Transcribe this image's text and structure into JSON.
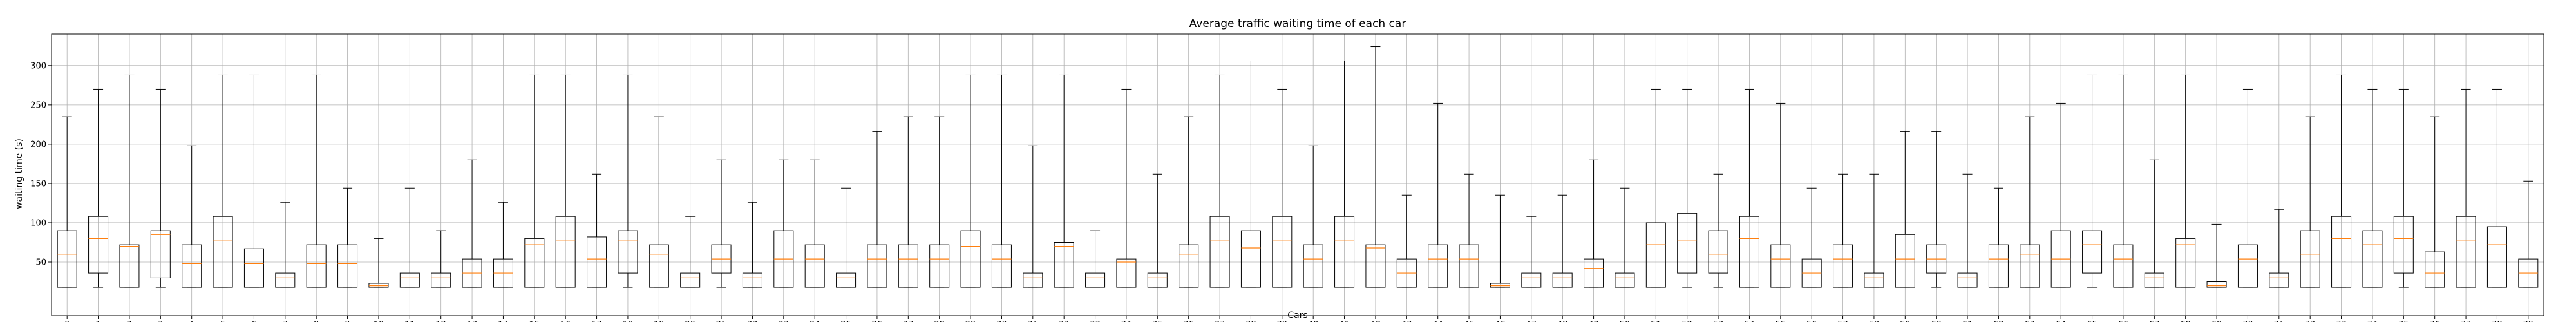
{
  "chart_data": {
    "type": "box",
    "title": "Average traffic waiting time of each car",
    "xlabel": "Cars",
    "ylabel": "waiting time (s)",
    "ylim": [
      -18,
      340
    ],
    "yticks": [
      50,
      100,
      150,
      200,
      250,
      300
    ],
    "grid": true,
    "colors": {
      "box": "#000000",
      "median": "#ff7f0e",
      "grid": "#b0b0b0"
    },
    "categories": [
      "0",
      "1",
      "2",
      "3",
      "4",
      "5",
      "6",
      "7",
      "8",
      "9",
      "10",
      "11",
      "12",
      "13",
      "14",
      "15",
      "16",
      "17",
      "18",
      "19",
      "20",
      "21",
      "22",
      "23",
      "24",
      "25",
      "26",
      "27",
      "28",
      "29",
      "30",
      "31",
      "32",
      "33",
      "34",
      "35",
      "36",
      "37",
      "38",
      "39",
      "40",
      "41",
      "42",
      "43",
      "44",
      "45",
      "46",
      "47",
      "48",
      "49",
      "50",
      "51",
      "52",
      "53",
      "54",
      "55",
      "56",
      "57",
      "58",
      "59",
      "60",
      "61",
      "62",
      "63",
      "64",
      "65",
      "66",
      "67",
      "68",
      "69",
      "70",
      "71",
      "72",
      "73",
      "74",
      "75",
      "76",
      "77",
      "78",
      "79"
    ],
    "boxes": [
      {
        "lo": 18,
        "q1": 18,
        "med": 60,
        "q3": 90,
        "hi": 235
      },
      {
        "lo": 18,
        "q1": 36,
        "med": 80,
        "q3": 108,
        "hi": 270
      },
      {
        "lo": 18,
        "q1": 18,
        "med": 70,
        "q3": 72,
        "hi": 288
      },
      {
        "lo": 18,
        "q1": 30,
        "med": 85,
        "q3": 90,
        "hi": 270
      },
      {
        "lo": 18,
        "q1": 18,
        "med": 48,
        "q3": 72,
        "hi": 198
      },
      {
        "lo": 18,
        "q1": 18,
        "med": 78,
        "q3": 108,
        "hi": 288
      },
      {
        "lo": 18,
        "q1": 18,
        "med": 48,
        "q3": 67,
        "hi": 288
      },
      {
        "lo": 18,
        "q1": 18,
        "med": 30,
        "q3": 36,
        "hi": 126
      },
      {
        "lo": 18,
        "q1": 18,
        "med": 48,
        "q3": 72,
        "hi": 288
      },
      {
        "lo": 18,
        "q1": 18,
        "med": 48,
        "q3": 72,
        "hi": 144
      },
      {
        "lo": 18,
        "q1": 18,
        "med": 20,
        "q3": 23,
        "hi": 80
      },
      {
        "lo": 18,
        "q1": 18,
        "med": 30,
        "q3": 36,
        "hi": 144
      },
      {
        "lo": 18,
        "q1": 18,
        "med": 30,
        "q3": 36,
        "hi": 90
      },
      {
        "lo": 18,
        "q1": 18,
        "med": 36,
        "q3": 54,
        "hi": 180
      },
      {
        "lo": 18,
        "q1": 18,
        "med": 36,
        "q3": 54,
        "hi": 126
      },
      {
        "lo": 18,
        "q1": 18,
        "med": 72,
        "q3": 80,
        "hi": 288
      },
      {
        "lo": 18,
        "q1": 18,
        "med": 78,
        "q3": 108,
        "hi": 288
      },
      {
        "lo": 18,
        "q1": 18,
        "med": 54,
        "q3": 82,
        "hi": 162
      },
      {
        "lo": 18,
        "q1": 36,
        "med": 78,
        "q3": 90,
        "hi": 288
      },
      {
        "lo": 18,
        "q1": 18,
        "med": 60,
        "q3": 72,
        "hi": 235
      },
      {
        "lo": 18,
        "q1": 18,
        "med": 30,
        "q3": 36,
        "hi": 108
      },
      {
        "lo": 18,
        "q1": 36,
        "med": 54,
        "q3": 72,
        "hi": 180
      },
      {
        "lo": 18,
        "q1": 18,
        "med": 30,
        "q3": 36,
        "hi": 126
      },
      {
        "lo": 18,
        "q1": 18,
        "med": 54,
        "q3": 90,
        "hi": 180
      },
      {
        "lo": 18,
        "q1": 18,
        "med": 54,
        "q3": 72,
        "hi": 180
      },
      {
        "lo": 18,
        "q1": 18,
        "med": 30,
        "q3": 36,
        "hi": 144
      },
      {
        "lo": 18,
        "q1": 18,
        "med": 54,
        "q3": 72,
        "hi": 216
      },
      {
        "lo": 18,
        "q1": 18,
        "med": 54,
        "q3": 72,
        "hi": 235
      },
      {
        "lo": 18,
        "q1": 18,
        "med": 54,
        "q3": 72,
        "hi": 235
      },
      {
        "lo": 18,
        "q1": 18,
        "med": 70,
        "q3": 90,
        "hi": 288
      },
      {
        "lo": 18,
        "q1": 18,
        "med": 54,
        "q3": 72,
        "hi": 288
      },
      {
        "lo": 18,
        "q1": 18,
        "med": 30,
        "q3": 36,
        "hi": 198
      },
      {
        "lo": 18,
        "q1": 18,
        "med": 70,
        "q3": 75,
        "hi": 288
      },
      {
        "lo": 18,
        "q1": 18,
        "med": 30,
        "q3": 36,
        "hi": 90
      },
      {
        "lo": 18,
        "q1": 18,
        "med": 50,
        "q3": 54,
        "hi": 270
      },
      {
        "lo": 18,
        "q1": 18,
        "med": 30,
        "q3": 36,
        "hi": 162
      },
      {
        "lo": 18,
        "q1": 18,
        "med": 60,
        "q3": 72,
        "hi": 235
      },
      {
        "lo": 18,
        "q1": 18,
        "med": 78,
        "q3": 108,
        "hi": 288
      },
      {
        "lo": 18,
        "q1": 18,
        "med": 68,
        "q3": 90,
        "hi": 306
      },
      {
        "lo": 18,
        "q1": 18,
        "med": 78,
        "q3": 108,
        "hi": 270
      },
      {
        "lo": 18,
        "q1": 18,
        "med": 54,
        "q3": 72,
        "hi": 198
      },
      {
        "lo": 18,
        "q1": 18,
        "med": 78,
        "q3": 108,
        "hi": 306
      },
      {
        "lo": 18,
        "q1": 18,
        "med": 68,
        "q3": 72,
        "hi": 324
      },
      {
        "lo": 18,
        "q1": 18,
        "med": 36,
        "q3": 54,
        "hi": 135
      },
      {
        "lo": 18,
        "q1": 18,
        "med": 54,
        "q3": 72,
        "hi": 252
      },
      {
        "lo": 18,
        "q1": 18,
        "med": 54,
        "q3": 72,
        "hi": 162
      },
      {
        "lo": 18,
        "q1": 18,
        "med": 20,
        "q3": 23,
        "hi": 135
      },
      {
        "lo": 18,
        "q1": 18,
        "med": 30,
        "q3": 36,
        "hi": 108
      },
      {
        "lo": 18,
        "q1": 18,
        "med": 30,
        "q3": 36,
        "hi": 135
      },
      {
        "lo": 18,
        "q1": 18,
        "med": 42,
        "q3": 54,
        "hi": 180
      },
      {
        "lo": 18,
        "q1": 18,
        "med": 30,
        "q3": 36,
        "hi": 144
      },
      {
        "lo": 18,
        "q1": 18,
        "med": 72,
        "q3": 100,
        "hi": 270
      },
      {
        "lo": 18,
        "q1": 36,
        "med": 78,
        "q3": 112,
        "hi": 270
      },
      {
        "lo": 18,
        "q1": 36,
        "med": 60,
        "q3": 90,
        "hi": 162
      },
      {
        "lo": 18,
        "q1": 18,
        "med": 80,
        "q3": 108,
        "hi": 270
      },
      {
        "lo": 18,
        "q1": 18,
        "med": 54,
        "q3": 72,
        "hi": 252
      },
      {
        "lo": 18,
        "q1": 18,
        "med": 36,
        "q3": 54,
        "hi": 144
      },
      {
        "lo": 18,
        "q1": 18,
        "med": 54,
        "q3": 72,
        "hi": 162
      },
      {
        "lo": 18,
        "q1": 18,
        "med": 30,
        "q3": 36,
        "hi": 162
      },
      {
        "lo": 18,
        "q1": 18,
        "med": 54,
        "q3": 85,
        "hi": 216
      },
      {
        "lo": 18,
        "q1": 36,
        "med": 54,
        "q3": 72,
        "hi": 216
      },
      {
        "lo": 18,
        "q1": 18,
        "med": 30,
        "q3": 36,
        "hi": 162
      },
      {
        "lo": 18,
        "q1": 18,
        "med": 54,
        "q3": 72,
        "hi": 144
      },
      {
        "lo": 18,
        "q1": 18,
        "med": 60,
        "q3": 72,
        "hi": 235
      },
      {
        "lo": 18,
        "q1": 18,
        "med": 54,
        "q3": 90,
        "hi": 252
      },
      {
        "lo": 18,
        "q1": 36,
        "med": 72,
        "q3": 90,
        "hi": 288
      },
      {
        "lo": 18,
        "q1": 18,
        "med": 54,
        "q3": 72,
        "hi": 288
      },
      {
        "lo": 18,
        "q1": 18,
        "med": 30,
        "q3": 36,
        "hi": 180
      },
      {
        "lo": 18,
        "q1": 18,
        "med": 72,
        "q3": 80,
        "hi": 288
      },
      {
        "lo": 18,
        "q1": 18,
        "med": 20,
        "q3": 25,
        "hi": 98
      },
      {
        "lo": 18,
        "q1": 18,
        "med": 54,
        "q3": 72,
        "hi": 270
      },
      {
        "lo": 18,
        "q1": 18,
        "med": 30,
        "q3": 36,
        "hi": 117
      },
      {
        "lo": 18,
        "q1": 18,
        "med": 60,
        "q3": 90,
        "hi": 235
      },
      {
        "lo": 18,
        "q1": 18,
        "med": 80,
        "q3": 108,
        "hi": 288
      },
      {
        "lo": 18,
        "q1": 18,
        "med": 72,
        "q3": 90,
        "hi": 270
      },
      {
        "lo": 18,
        "q1": 36,
        "med": 80,
        "q3": 108,
        "hi": 270
      },
      {
        "lo": 18,
        "q1": 18,
        "med": 36,
        "q3": 63,
        "hi": 235
      },
      {
        "lo": 18,
        "q1": 18,
        "med": 78,
        "q3": 108,
        "hi": 270
      },
      {
        "lo": 18,
        "q1": 18,
        "med": 72,
        "q3": 95,
        "hi": 270
      },
      {
        "lo": 18,
        "q1": 18,
        "med": 36,
        "q3": 54,
        "hi": 153
      }
    ]
  }
}
